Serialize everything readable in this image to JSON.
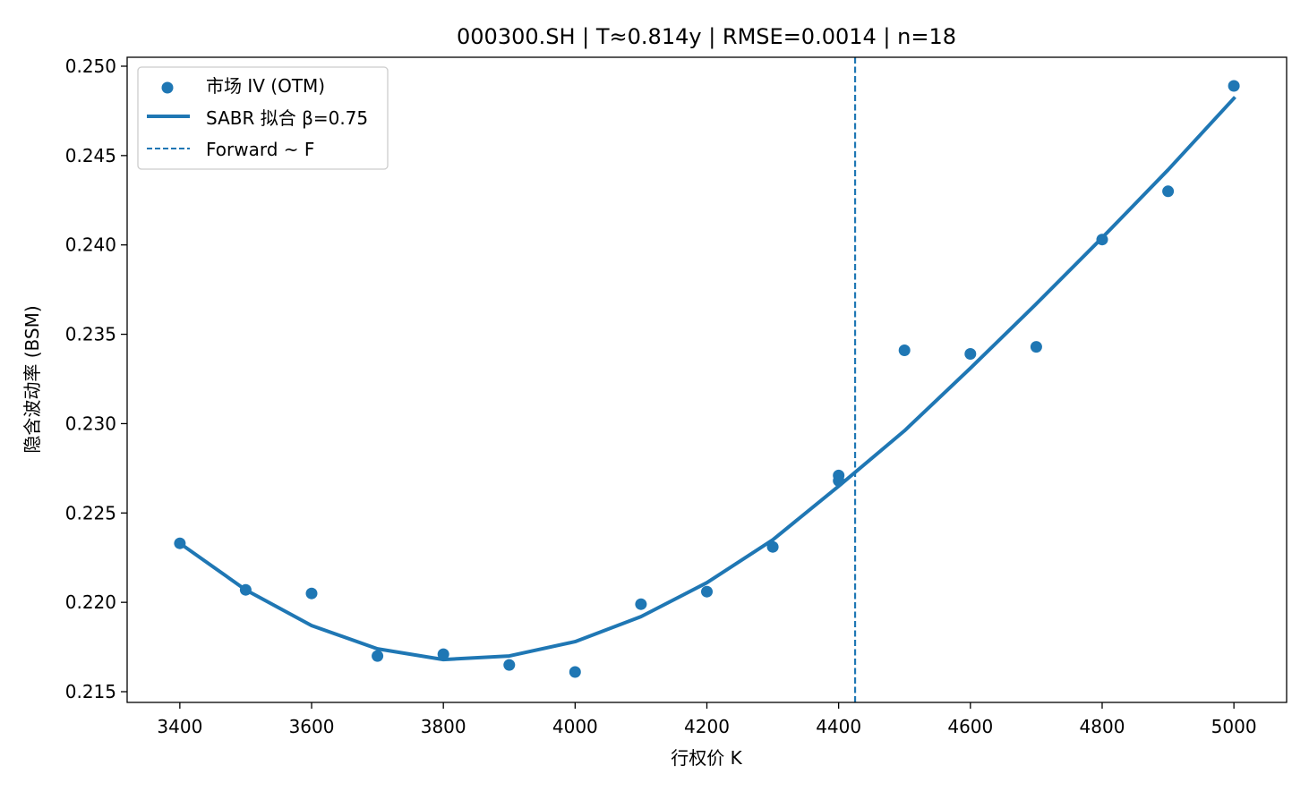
{
  "chart_data": {
    "type": "scatter",
    "title": "000300.SH | T≈0.814y | RMSE=0.0014 | n=18",
    "xlabel": "行权价 K",
    "ylabel": "隐含波动率 (BSM)",
    "xlim": [
      3320,
      5080
    ],
    "ylim": [
      0.2144,
      0.2505
    ],
    "xticks": [
      3400,
      3600,
      3800,
      4000,
      4200,
      4400,
      4600,
      4800,
      5000
    ],
    "yticks": [
      "0.215",
      "0.220",
      "0.225",
      "0.230",
      "0.235",
      "0.240",
      "0.245",
      "0.250"
    ],
    "ytick_values": [
      0.215,
      0.22,
      0.225,
      0.23,
      0.235,
      0.24,
      0.245,
      0.25
    ],
    "grid": false,
    "legend_position": "upper-left",
    "color": "#1f77b4",
    "series": [
      {
        "name": "市场 IV (OTM)",
        "type": "scatter",
        "points": [
          [
            3400,
            0.2233
          ],
          [
            3500,
            0.2207
          ],
          [
            3600,
            0.2205
          ],
          [
            3700,
            0.217
          ],
          [
            3800,
            0.2171
          ],
          [
            3900,
            0.2165
          ],
          [
            4000,
            0.2161
          ],
          [
            4100,
            0.2199
          ],
          [
            4200,
            0.2206
          ],
          [
            4300,
            0.2231
          ],
          [
            4400,
            0.2271
          ],
          [
            4400,
            0.2268
          ],
          [
            4500,
            0.2341
          ],
          [
            4600,
            0.2339
          ],
          [
            4700,
            0.2343
          ],
          [
            4800,
            0.2403
          ],
          [
            4900,
            0.243
          ],
          [
            5000,
            0.2489
          ]
        ]
      },
      {
        "name": "SABR 拟合 β=0.75",
        "type": "line",
        "points": [
          [
            3400,
            0.2233
          ],
          [
            3500,
            0.2207
          ],
          [
            3600,
            0.2187
          ],
          [
            3700,
            0.2174
          ],
          [
            3800,
            0.2168
          ],
          [
            3900,
            0.217
          ],
          [
            4000,
            0.2178
          ],
          [
            4100,
            0.2192
          ],
          [
            4200,
            0.2211
          ],
          [
            4300,
            0.2235
          ],
          [
            4400,
            0.2265
          ],
          [
            4500,
            0.2296
          ],
          [
            4600,
            0.2331
          ],
          [
            4700,
            0.2367
          ],
          [
            4800,
            0.2404
          ],
          [
            4900,
            0.2442
          ],
          [
            5000,
            0.2482
          ]
        ]
      },
      {
        "name": "Forward ~ F",
        "type": "vline",
        "x": 4425
      }
    ]
  }
}
